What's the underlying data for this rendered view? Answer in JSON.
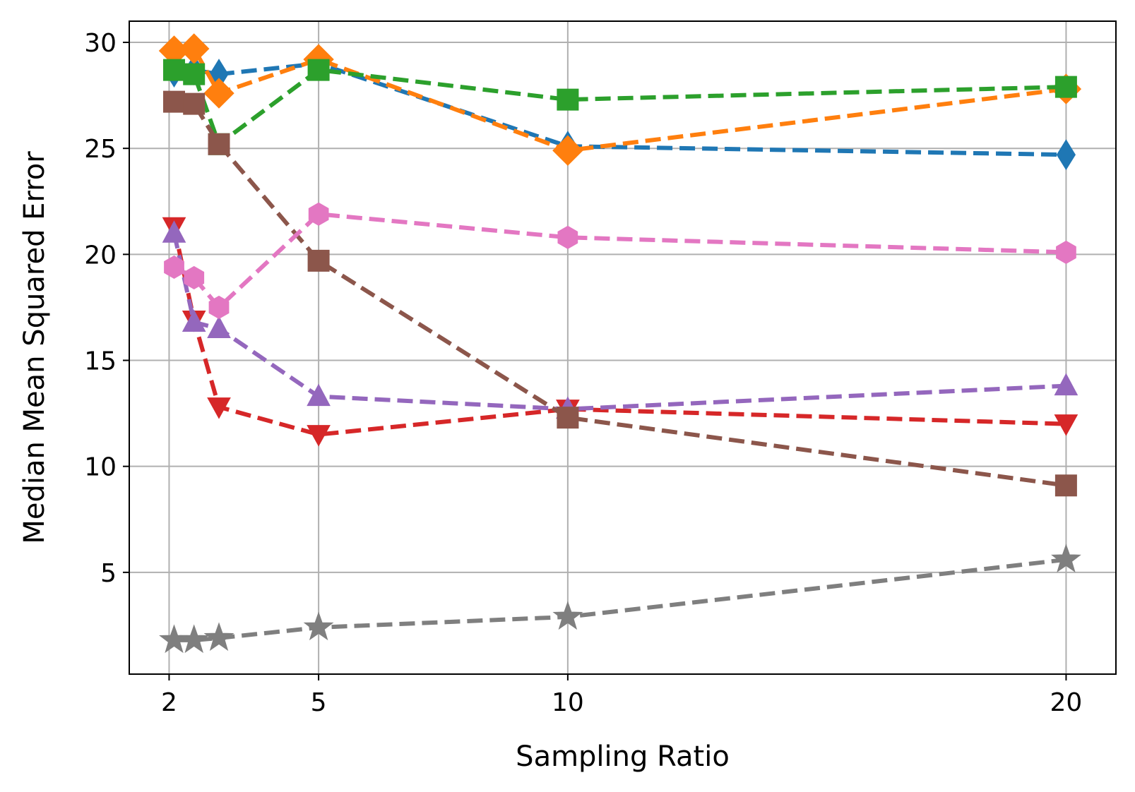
{
  "chart_data": {
    "type": "line",
    "title": "",
    "xlabel": "Sampling Ratio",
    "ylabel": "Median Mean Squared Error",
    "xlim": [
      1.2,
      21.0
    ],
    "ylim": [
      0.2,
      31.0
    ],
    "xticks": [
      2,
      5,
      10,
      20
    ],
    "yticks": [
      5,
      10,
      15,
      20,
      25,
      30
    ],
    "grid": true,
    "legend": null,
    "x": [
      2.1,
      2.5,
      3,
      5,
      10,
      20
    ],
    "series": [
      {
        "name": "blue",
        "color": "#1f77b4",
        "marker": "thin-diamond",
        "values": [
          28.6,
          28.7,
          28.5,
          29.0,
          25.1,
          24.7
        ]
      },
      {
        "name": "orange",
        "color": "#ff7f0e",
        "marker": "diamond",
        "values": [
          29.6,
          29.7,
          27.6,
          29.2,
          24.9,
          27.8
        ]
      },
      {
        "name": "green",
        "color": "#2ca02c",
        "marker": "square",
        "values": [
          28.7,
          28.5,
          25.2,
          28.7,
          27.3,
          27.9
        ]
      },
      {
        "name": "red",
        "color": "#d62728",
        "marker": "triangle-down",
        "values": [
          21.3,
          16.9,
          12.8,
          11.5,
          12.7,
          12.0
        ]
      },
      {
        "name": "purple",
        "color": "#9467bd",
        "marker": "triangle-up",
        "values": [
          21.0,
          16.8,
          16.5,
          13.3,
          12.7,
          13.8
        ]
      },
      {
        "name": "brown",
        "color": "#8c564b",
        "marker": "square",
        "values": [
          27.2,
          27.1,
          25.2,
          19.7,
          12.3,
          9.1
        ]
      },
      {
        "name": "pink",
        "color": "#e377c2",
        "marker": "hexagon",
        "values": [
          19.4,
          18.9,
          17.5,
          21.9,
          20.8,
          20.1
        ]
      },
      {
        "name": "gray",
        "color": "#7f7f7f",
        "marker": "star",
        "values": [
          1.8,
          1.8,
          1.9,
          2.4,
          2.9,
          5.6
        ]
      }
    ]
  }
}
